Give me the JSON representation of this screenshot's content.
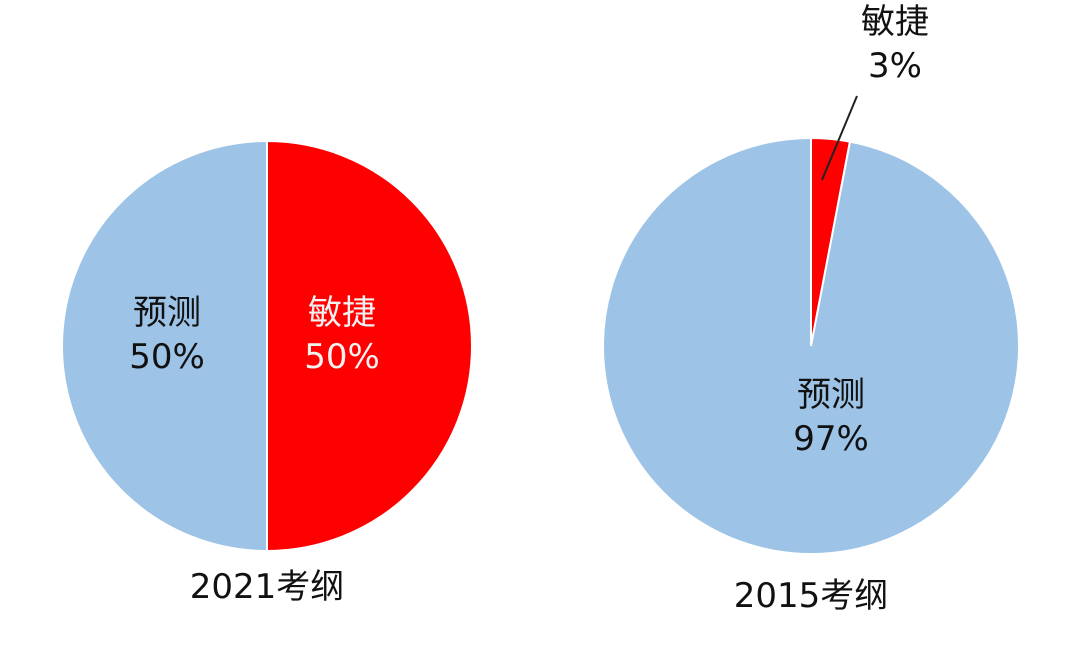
{
  "chart_data": [
    {
      "type": "pie",
      "title": "2021考纲",
      "slices": [
        {
          "name": "敏捷",
          "value": 50,
          "label": "50%",
          "color": "#FF0000"
        },
        {
          "name": "预测",
          "value": 50,
          "label": "50%",
          "color": "#9DC3E6"
        }
      ],
      "label_colors": {
        "敏捷": "#F2F2F2",
        "预测": "#111111"
      }
    },
    {
      "type": "pie",
      "title": "2015考纲",
      "slices": [
        {
          "name": "敏捷",
          "value": 3,
          "label": "3%",
          "color": "#FF0000"
        },
        {
          "name": "预测",
          "value": 97,
          "label": "97%",
          "color": "#9DC3E6"
        }
      ],
      "label_colors": {
        "敏捷": "#111111",
        "预测": "#111111"
      }
    }
  ]
}
